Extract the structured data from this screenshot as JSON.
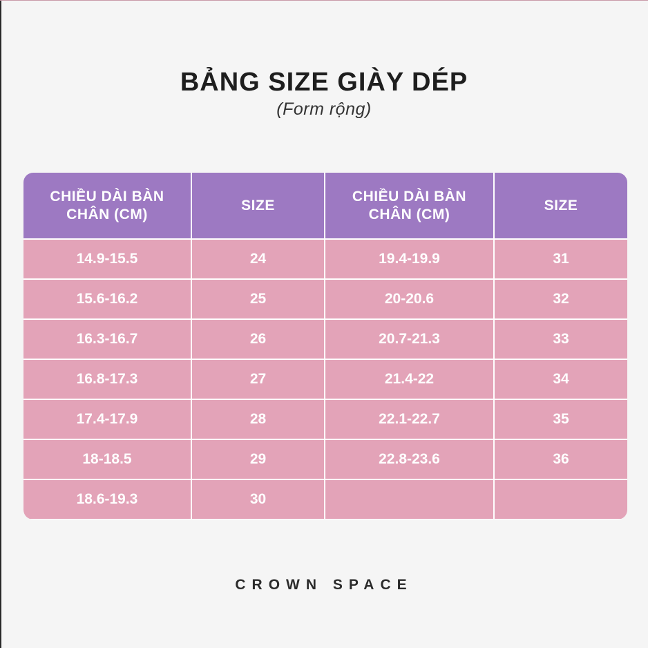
{
  "title": "BẢNG SIZE GIÀY DÉP",
  "subtitle": "(Form rộng)",
  "table": {
    "headers": [
      "CHIỀU DÀI BÀN CHÂN (CM)",
      "SIZE",
      "CHIỀU DÀI BÀN CHÂN (CM)",
      "SIZE"
    ],
    "rows": [
      [
        "14.9-15.5",
        "24",
        "19.4-19.9",
        "31"
      ],
      [
        "15.6-16.2",
        "25",
        "20-20.6",
        "32"
      ],
      [
        "16.3-16.7",
        "26",
        "20.7-21.3",
        "33"
      ],
      [
        "16.8-17.3",
        "27",
        "21.4-22",
        "34"
      ],
      [
        "17.4-17.9",
        "28",
        "22.1-22.7",
        "35"
      ],
      [
        "18-18.5",
        "29",
        "22.8-23.6",
        "36"
      ],
      [
        "18.6-19.3",
        "30",
        "",
        ""
      ]
    ]
  },
  "brand": "CROWN SPACE",
  "colors": {
    "header_bg": "#9d79c2",
    "cell_bg": "#e3a3b8",
    "text_on_cells": "#ffffff"
  }
}
